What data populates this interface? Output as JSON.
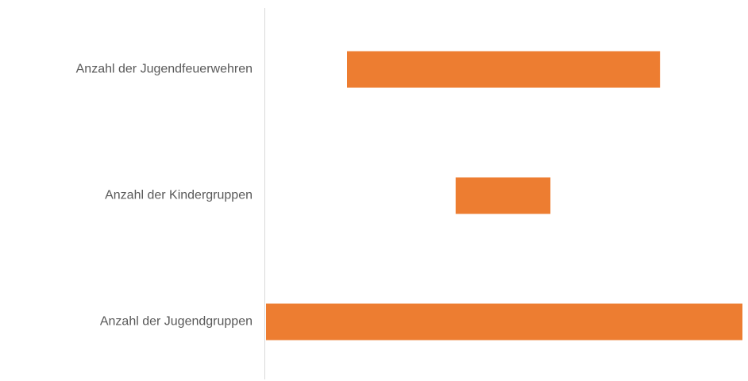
{
  "chart_data": {
    "type": "floating-bar",
    "categories": [
      "Anzahl der Jugendfeuerwehren",
      "Anzahl der Kindergruppen",
      "Anzahl der Jugendgruppen"
    ],
    "ranges": [
      [
        17,
        82.7
      ],
      [
        39.8,
        59.7
      ],
      [
        0,
        100
      ]
    ],
    "color": "#ed7d31",
    "xlim": [
      0,
      100
    ]
  }
}
